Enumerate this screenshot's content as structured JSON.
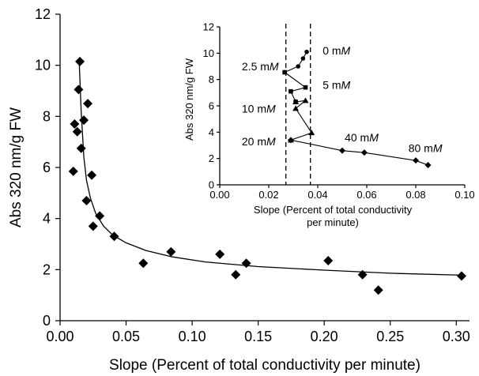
{
  "chart_data": [
    {
      "type": "scatter",
      "title": "",
      "xlabel": "Slope (Percent of total conductivity per minute)",
      "ylabel": "Abs 320 nm/g FW",
      "xlim": [
        0,
        0.31
      ],
      "ylim": [
        0,
        12
      ],
      "xticks": [
        "0.00",
        "0.05",
        "0.10",
        "0.15",
        "0.20",
        "0.25",
        "0.30"
      ],
      "yticks": [
        "0",
        "2",
        "4",
        "6",
        "8",
        "10",
        "12"
      ],
      "marker": "diamond",
      "grid": false,
      "points": [
        {
          "x": 0.01,
          "y": 5.85
        },
        {
          "x": 0.011,
          "y": 7.7
        },
        {
          "x": 0.013,
          "y": 7.4
        },
        {
          "x": 0.014,
          "y": 9.05
        },
        {
          "x": 0.015,
          "y": 10.15
        },
        {
          "x": 0.016,
          "y": 6.75
        },
        {
          "x": 0.018,
          "y": 7.85
        },
        {
          "x": 0.02,
          "y": 4.7
        },
        {
          "x": 0.021,
          "y": 8.5
        },
        {
          "x": 0.024,
          "y": 5.7
        },
        {
          "x": 0.025,
          "y": 3.7
        },
        {
          "x": 0.03,
          "y": 4.1
        },
        {
          "x": 0.041,
          "y": 3.3
        },
        {
          "x": 0.063,
          "y": 2.25
        },
        {
          "x": 0.084,
          "y": 2.7
        },
        {
          "x": 0.121,
          "y": 2.6
        },
        {
          "x": 0.133,
          "y": 1.8
        },
        {
          "x": 0.141,
          "y": 2.25
        },
        {
          "x": 0.203,
          "y": 2.35
        },
        {
          "x": 0.229,
          "y": 1.8
        },
        {
          "x": 0.241,
          "y": 1.2
        },
        {
          "x": 0.304,
          "y": 1.75
        }
      ],
      "fit_curve": [
        {
          "x": 0.0145,
          "y": 10.15
        },
        {
          "x": 0.016,
          "y": 8.2
        },
        {
          "x": 0.018,
          "y": 6.4
        },
        {
          "x": 0.02,
          "y": 5.5
        },
        {
          "x": 0.023,
          "y": 4.8
        },
        {
          "x": 0.027,
          "y": 4.2
        },
        {
          "x": 0.033,
          "y": 3.7
        },
        {
          "x": 0.04,
          "y": 3.35
        },
        {
          "x": 0.05,
          "y": 3.05
        },
        {
          "x": 0.065,
          "y": 2.75
        },
        {
          "x": 0.085,
          "y": 2.5
        },
        {
          "x": 0.11,
          "y": 2.3
        },
        {
          "x": 0.15,
          "y": 2.12
        },
        {
          "x": 0.2,
          "y": 1.98
        },
        {
          "x": 0.25,
          "y": 1.86
        },
        {
          "x": 0.305,
          "y": 1.78
        }
      ]
    },
    {
      "type": "line",
      "title": "",
      "xlabel": "Slope (Percent of total conductivity per minute)",
      "ylabel": "Abs 320 nm/g FW",
      "xlim": [
        0,
        0.1
      ],
      "ylim": [
        0,
        12
      ],
      "xticks": [
        "0.00",
        "0.02",
        "0.04",
        "0.06",
        "0.08",
        "0.10"
      ],
      "yticks": [
        "0",
        "2",
        "4",
        "6",
        "8",
        "10",
        "12"
      ],
      "grid": false,
      "reference_lines_x": [
        0.027,
        0.037
      ],
      "series": [
        {
          "name": "0 mM",
          "marker": "circle",
          "values": [
            {
              "x": 0.0355,
              "y": 10.1
            },
            {
              "x": 0.034,
              "y": 9.6
            },
            {
              "x": 0.032,
              "y": 9.0
            },
            {
              "x": 0.0265,
              "y": 8.55
            }
          ]
        },
        {
          "name": "5 mM",
          "marker": "square",
          "values": [
            {
              "x": 0.0265,
              "y": 8.55
            },
            {
              "x": 0.035,
              "y": 7.4
            },
            {
              "x": 0.029,
              "y": 7.1
            },
            {
              "x": 0.031,
              "y": 6.3
            }
          ]
        },
        {
          "name": "10 mM",
          "marker": "triangle",
          "values": [
            {
              "x": 0.031,
              "y": 6.3
            },
            {
              "x": 0.035,
              "y": 6.4
            },
            {
              "x": 0.031,
              "y": 5.8
            },
            {
              "x": 0.0375,
              "y": 3.95
            },
            {
              "x": 0.029,
              "y": 3.4
            }
          ]
        },
        {
          "name": "80 mM",
          "marker": "diamond",
          "values": [
            {
              "x": 0.029,
              "y": 3.4
            },
            {
              "x": 0.05,
              "y": 2.6
            },
            {
              "x": 0.059,
              "y": 2.45
            },
            {
              "x": 0.08,
              "y": 1.85
            },
            {
              "x": 0.085,
              "y": 1.5
            }
          ]
        }
      ],
      "annotations": [
        {
          "label": "0 m",
          "unit": "M",
          "x": 0.042,
          "y": 9.9
        },
        {
          "label": "2.5 m",
          "unit": "M",
          "x": 0.009,
          "y": 8.7
        },
        {
          "label": "5 m",
          "unit": "M",
          "x": 0.042,
          "y": 7.3
        },
        {
          "label": "10 m",
          "unit": "M",
          "x": 0.009,
          "y": 5.5
        },
        {
          "label": "20 m",
          "unit": "M",
          "x": 0.009,
          "y": 3.0
        },
        {
          "label": "40 m",
          "unit": "M",
          "x": 0.051,
          "y": 3.3
        },
        {
          "label": "80 m",
          "unit": "M",
          "x": 0.077,
          "y": 2.5
        }
      ]
    }
  ]
}
